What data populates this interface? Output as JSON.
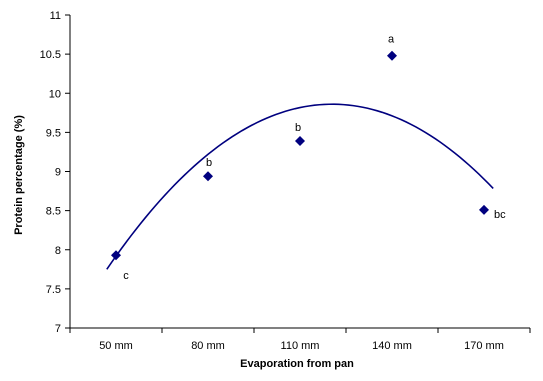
{
  "chart_data": {
    "type": "scatter",
    "title": "",
    "xlabel": "Evaporation from pan",
    "ylabel": "Protein percentage (%)",
    "categories": [
      "50 mm",
      "80 mm",
      "110 mm",
      "140 mm",
      "170 mm"
    ],
    "ylim": [
      7,
      11
    ],
    "yticks": [
      "7",
      "7.5",
      "8",
      "8.5",
      "9",
      "9.5",
      "10",
      "10.5",
      "11"
    ],
    "grid": false,
    "series": [
      {
        "values": [
          7.93,
          8.94,
          9.39,
          10.48,
          8.51
        ],
        "point_labels": [
          "c",
          "b",
          "b",
          "a",
          "bc"
        ],
        "marker": "diamond",
        "color": "#00007F"
      }
    ],
    "trendline": {
      "type": "polynomial-2",
      "color": "#00007F",
      "x_start": 0.9,
      "x_end": 5.1,
      "y_start": 7.75,
      "y_peak": 9.86,
      "x_peak": 3.35,
      "y_end": 8.83
    }
  }
}
